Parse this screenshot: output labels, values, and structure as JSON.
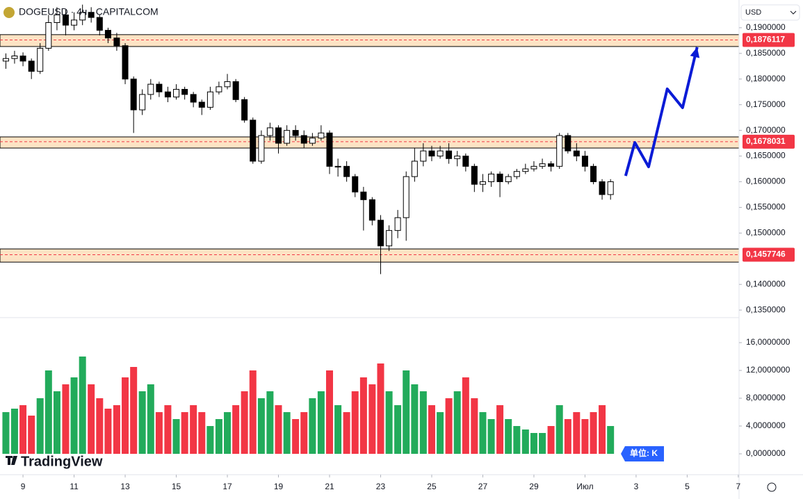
{
  "chart_data": {
    "type": "candlestick",
    "title": "DOGEUSD · 4ч · CAPITALCOM",
    "currency": "USD",
    "watermark": "TradingView",
    "x": [
      8.33,
      8.67,
      9,
      9.33,
      9.67,
      10,
      10.33,
      10.67,
      11,
      11.33,
      11.67,
      12,
      12.33,
      12.67,
      13,
      13.33,
      13.67,
      14,
      14.33,
      14.67,
      15,
      15.33,
      15.67,
      16,
      16.33,
      16.67,
      17,
      17.33,
      17.67,
      18,
      18.33,
      18.67,
      19,
      19.33,
      19.67,
      20,
      20.33,
      20.67,
      21,
      21.33,
      21.67,
      22,
      22.33,
      22.67,
      23,
      23.33,
      23.67,
      24,
      24.33,
      24.67,
      25,
      25.33,
      25.67,
      26,
      26.33,
      26.67,
      27,
      27.33,
      27.67,
      28,
      28.33,
      28.67,
      29,
      29.33,
      29.67,
      30,
      30.33,
      30.67,
      31,
      31.33,
      31.67,
      32
    ],
    "open": [
      0.1835,
      0.184,
      0.1845,
      0.1835,
      0.1815,
      0.186,
      0.191,
      0.1925,
      0.1905,
      0.1915,
      0.193,
      0.192,
      0.1895,
      0.188,
      0.1865,
      0.18,
      0.174,
      0.177,
      0.179,
      0.1775,
      0.1765,
      0.178,
      0.177,
      0.1755,
      0.1745,
      0.1775,
      0.1785,
      0.1795,
      0.176,
      0.172,
      0.164,
      0.169,
      0.1705,
      0.1675,
      0.17,
      0.169,
      0.1675,
      0.1685,
      0.1695,
      0.163,
      0.163,
      0.161,
      0.158,
      0.1565,
      0.1525,
      0.1475,
      0.1505,
      0.153,
      0.161,
      0.164,
      0.166,
      0.165,
      0.166,
      0.1645,
      0.165,
      0.163,
      0.1595,
      0.16,
      0.1615,
      0.16,
      0.161,
      0.162,
      0.1625,
      0.163,
      0.1635,
      0.163,
      0.169,
      0.166,
      0.165,
      0.163,
      0.16,
      0.1575
    ],
    "high": [
      0.185,
      0.1855,
      0.1852,
      0.184,
      0.187,
      0.1925,
      0.194,
      0.1935,
      0.193,
      0.1945,
      0.194,
      0.1925,
      0.19,
      0.189,
      0.187,
      0.1805,
      0.178,
      0.18,
      0.1795,
      0.1785,
      0.179,
      0.1785,
      0.1775,
      0.176,
      0.1785,
      0.1795,
      0.181,
      0.18,
      0.1765,
      0.1725,
      0.17,
      0.1715,
      0.171,
      0.171,
      0.171,
      0.17,
      0.1695,
      0.171,
      0.17,
      0.1645,
      0.164,
      0.1615,
      0.159,
      0.157,
      0.1535,
      0.1515,
      0.1545,
      0.162,
      0.1665,
      0.1675,
      0.167,
      0.167,
      0.1675,
      0.166,
      0.1655,
      0.1635,
      0.1615,
      0.162,
      0.162,
      0.1615,
      0.1625,
      0.1635,
      0.164,
      0.1645,
      0.164,
      0.1695,
      0.1695,
      0.1675,
      0.166,
      0.1635,
      0.1605,
      0.1605
    ],
    "low": [
      0.182,
      0.183,
      0.1825,
      0.18,
      0.181,
      0.1855,
      0.1895,
      0.1885,
      0.1895,
      0.1905,
      0.191,
      0.1885,
      0.187,
      0.1855,
      0.179,
      0.1695,
      0.173,
      0.176,
      0.1765,
      0.1755,
      0.176,
      0.176,
      0.1745,
      0.173,
      0.174,
      0.177,
      0.178,
      0.1755,
      0.1715,
      0.1635,
      0.1635,
      0.168,
      0.1655,
      0.167,
      0.168,
      0.1665,
      0.167,
      0.168,
      0.1615,
      0.161,
      0.16,
      0.157,
      0.1505,
      0.1515,
      0.142,
      0.1465,
      0.149,
      0.1485,
      0.16,
      0.163,
      0.164,
      0.1645,
      0.1635,
      0.163,
      0.162,
      0.158,
      0.158,
      0.159,
      0.157,
      0.1595,
      0.1605,
      0.1615,
      0.162,
      0.1625,
      0.162,
      0.1625,
      0.1655,
      0.164,
      0.162,
      0.1595,
      0.1565,
      0.1565
    ],
    "close": [
      0.184,
      0.1845,
      0.1835,
      0.1815,
      0.186,
      0.191,
      0.1925,
      0.1905,
      0.1915,
      0.193,
      0.192,
      0.1895,
      0.188,
      0.1865,
      0.18,
      0.174,
      0.177,
      0.179,
      0.1775,
      0.1765,
      0.178,
      0.177,
      0.1755,
      0.1745,
      0.1775,
      0.1785,
      0.1795,
      0.176,
      0.172,
      0.164,
      0.169,
      0.1705,
      0.1675,
      0.17,
      0.169,
      0.1675,
      0.1685,
      0.1695,
      0.163,
      0.163,
      0.161,
      0.158,
      0.1565,
      0.1525,
      0.1475,
      0.1505,
      0.153,
      0.161,
      0.164,
      0.166,
      0.165,
      0.166,
      0.1645,
      0.165,
      0.163,
      0.1595,
      0.16,
      0.1615,
      0.16,
      0.161,
      0.162,
      0.1625,
      0.163,
      0.1635,
      0.163,
      0.169,
      0.166,
      0.165,
      0.163,
      0.16,
      0.1575,
      0.16
    ],
    "up_color": "#ffffff",
    "down_color": "#000000",
    "wick_color": "#000000",
    "xlim": [
      8.1,
      37.03
    ],
    "xticks": [
      9,
      11,
      13,
      15,
      17,
      19,
      21,
      23,
      25,
      27,
      29,
      {
        "value": 31,
        "label": "Июл"
      },
      {
        "value": 33,
        "label": "3"
      },
      {
        "value": 35,
        "label": "5"
      },
      {
        "value": 37,
        "label": "7"
      }
    ],
    "ylim": [
      0.1338,
      0.1954
    ],
    "yticks": [
      {
        "value": 0.19,
        "label": "0,1900000"
      },
      {
        "value": 0.185,
        "label": "0,1850000"
      },
      {
        "value": 0.18,
        "label": "0,1800000"
      },
      {
        "value": 0.175,
        "label": "0,1750000"
      },
      {
        "value": 0.17,
        "label": "0,1700000"
      },
      {
        "value": 0.165,
        "label": "0,1650000"
      },
      {
        "value": 0.16,
        "label": "0,1600000"
      },
      {
        "value": 0.155,
        "label": "0,1550000"
      },
      {
        "value": 0.15,
        "label": "0,1500000"
      },
      {
        "value": 0.14,
        "label": "0,1400000"
      },
      {
        "value": 0.135,
        "label": "0,1350000"
      }
    ],
    "levels": [
      {
        "value": 0.1876117,
        "label": "0,1876117",
        "band": [
          0.18634,
          0.18865
        ]
      },
      {
        "value": 0.1678031,
        "label": "0,1678031",
        "band": [
          0.16656,
          0.16873
        ]
      },
      {
        "value": 0.1457746,
        "label": "0,1457746",
        "band": [
          0.14434,
          0.14691
        ]
      }
    ],
    "level_color": "#f23645",
    "band_color": "#fde3c4",
    "projection": {
      "x": [
        32.59,
        32.95,
        33.49,
        34.22,
        34.82,
        35.39
      ],
      "y": [
        0.16114,
        0.16764,
        0.1629,
        0.17808,
        0.17442,
        0.18621
      ],
      "color": "#0a1bd6"
    },
    "volume": {
      "values": [
        6,
        6.5,
        7,
        5.5,
        8,
        12,
        9,
        10,
        11,
        14,
        10,
        8,
        6.5,
        7,
        11,
        12.5,
        9,
        10,
        6,
        7,
        5,
        6,
        7,
        6,
        4,
        5,
        6,
        7,
        9,
        12,
        8,
        9,
        7,
        6,
        5,
        6,
        8,
        9,
        12,
        7,
        6,
        9,
        11,
        10,
        13,
        9,
        7,
        12,
        10,
        9,
        7,
        6,
        8,
        9,
        11,
        8,
        6,
        5,
        7,
        5,
        4,
        3.5,
        3,
        3,
        4,
        7,
        5,
        6,
        5,
        6,
        7,
        4
      ],
      "up_color": "#22ab5b",
      "down_color": "#f23645",
      "ylim": [
        -2.7,
        19.3
      ],
      "yticks": [
        {
          "value": 0,
          "label": "0,0000000"
        },
        {
          "value": 4,
          "label": "4,0000000"
        },
        {
          "value": 8,
          "label": "8,0000000"
        },
        {
          "value": 12,
          "label": "12,0000000"
        },
        {
          "value": 16,
          "label": "16,0000000"
        }
      ],
      "unit_label": "单位: K"
    }
  }
}
